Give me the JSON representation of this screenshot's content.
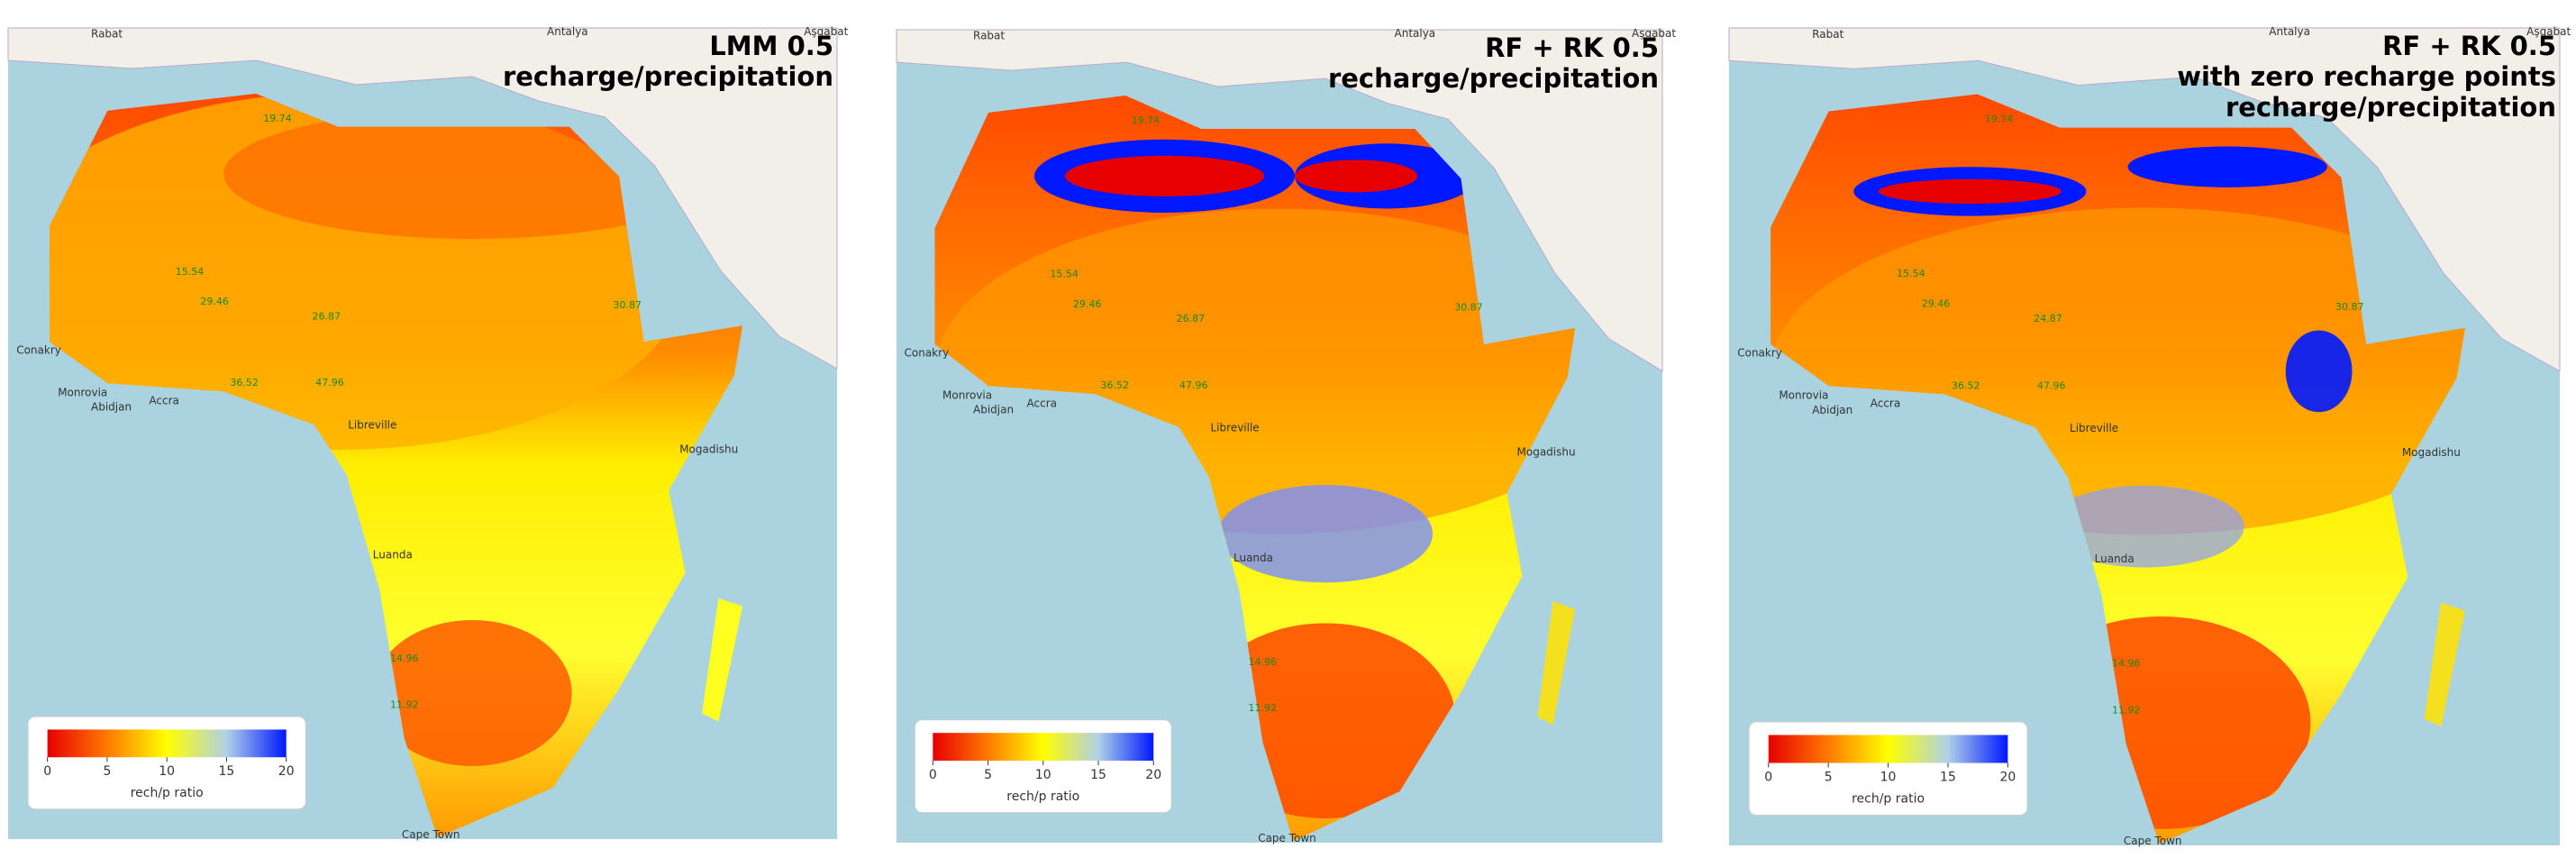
{
  "basemap_labels": [
    "Rabat",
    "Antalya",
    "Aşgabat",
    "Conakry",
    "Monrovia",
    "Abidjan",
    "Accra",
    "Libreville",
    "Luanda",
    "Mogadishu",
    "Cape Town"
  ],
  "panels": [
    {
      "title": [
        "LMM 0.5",
        "recharge/precipitation"
      ],
      "points": [
        19.74,
        15.54,
        29.46,
        26.87,
        30.87,
        36.52,
        47.96,
        14.96,
        11.92
      ],
      "colorbar": {
        "label": "rech/p ratio",
        "lim": [
          0,
          20
        ],
        "ticks": [
          0,
          5,
          10,
          15,
          20
        ],
        "colors": [
          "#e60000",
          "#ff7a00",
          "#ffff00",
          "#b0d0e8",
          "#0018ff"
        ]
      }
    },
    {
      "title": [
        "RF + RK 0.5",
        "recharge/precipitation"
      ],
      "points": [
        19.74,
        15.54,
        29.46,
        26.87,
        30.87,
        36.52,
        47.96,
        14.96,
        11.92
      ],
      "colorbar": {
        "label": "rech/p ratio",
        "lim": [
          0,
          20
        ],
        "ticks": [
          0,
          5,
          10,
          15,
          20
        ],
        "colors": [
          "#e60000",
          "#ff7a00",
          "#ffff00",
          "#b0d0e8",
          "#0018ff"
        ]
      }
    },
    {
      "title": [
        "RF + RK 0.5",
        "with zero recharge points",
        "recharge/precipitation"
      ],
      "points": [
        19.74,
        15.54,
        29.46,
        24.87,
        30.87,
        36.52,
        47.96,
        14.96,
        11.92
      ],
      "colorbar": {
        "label": "rech/p ratio",
        "lim": [
          0,
          20
        ],
        "ticks": [
          0,
          5,
          10,
          15,
          20
        ],
        "colors": [
          "#e60000",
          "#ff7a00",
          "#ffff00",
          "#b0d0e8",
          "#0018ff"
        ]
      }
    }
  ]
}
